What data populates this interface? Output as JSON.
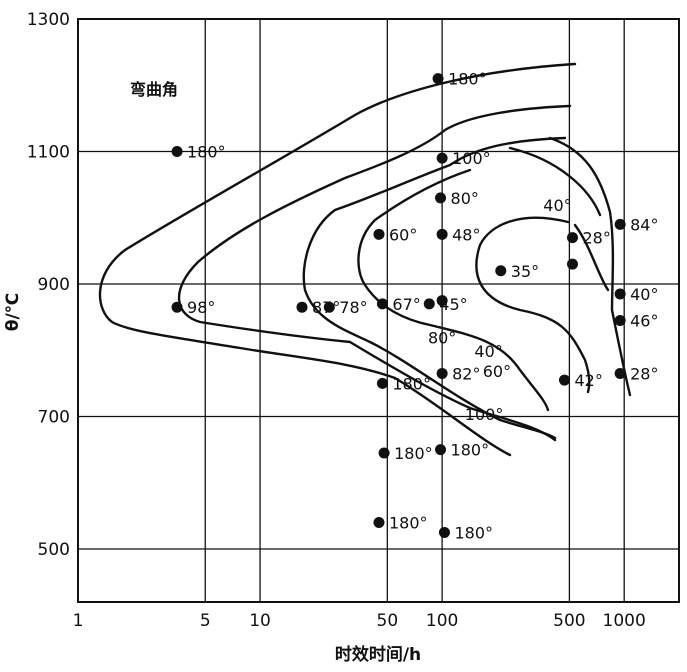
{
  "chart_data": {
    "type": "scatter",
    "xlabel": "时效时间/h",
    "ylabel": "θ/℃",
    "x_scale": "log",
    "xlim": [
      1,
      2000
    ],
    "ylim": [
      420,
      1300
    ],
    "x_ticks": [
      {
        "value": 1,
        "label": "1"
      },
      {
        "value": 5,
        "label": "5"
      },
      {
        "value": 10,
        "label": "10"
      },
      {
        "value": 50,
        "label": "50"
      },
      {
        "value": 100,
        "label": "100"
      },
      {
        "value": 500,
        "label": "500"
      },
      {
        "value": 1000,
        "label": "1000"
      }
    ],
    "y_ticks": [
      {
        "value": 500,
        "label": "500"
      },
      {
        "value": 700,
        "label": "700"
      },
      {
        "value": 900,
        "label": "900"
      },
      {
        "value": 1100,
        "label": "1100"
      },
      {
        "value": 1300,
        "label": "1300"
      }
    ],
    "grid": true,
    "legend_title": "弯曲角",
    "series": [
      {
        "name": "弯曲角",
        "points": [
          {
            "x": 3.5,
            "y": 1100,
            "label": "180°"
          },
          {
            "x": 3.5,
            "y": 865,
            "label": "98°"
          },
          {
            "x": 17,
            "y": 865,
            "label": "87°"
          },
          {
            "x": 24,
            "y": 865,
            "label": "78°"
          },
          {
            "x": 45,
            "y": 975,
            "label": "60°"
          },
          {
            "x": 47,
            "y": 870,
            "label": "67°"
          },
          {
            "x": 47,
            "y": 750,
            "label": "180°"
          },
          {
            "x": 48,
            "y": 645,
            "label": "180°"
          },
          {
            "x": 45,
            "y": 540,
            "label": "180°"
          },
          {
            "x": 95,
            "y": 1210,
            "label": "180°"
          },
          {
            "x": 100,
            "y": 1090,
            "label": "100°"
          },
          {
            "x": 98,
            "y": 1030,
            "label": "80°"
          },
          {
            "x": 100,
            "y": 975,
            "label": "48°"
          },
          {
            "x": 85,
            "y": 870,
            "label": "45°"
          },
          {
            "x": 100,
            "y": 875,
            "label": ""
          },
          {
            "x": 100,
            "y": 765,
            "label": "82°"
          },
          {
            "x": 98,
            "y": 650,
            "label": "180°"
          },
          {
            "x": 103,
            "y": 525,
            "label": "180°"
          },
          {
            "x": 210,
            "y": 920,
            "label": "35°"
          },
          {
            "x": 520,
            "y": 970,
            "label": "28°"
          },
          {
            "x": 520,
            "y": 930,
            "label": ""
          },
          {
            "x": 470,
            "y": 755,
            "label": "42°"
          },
          {
            "x": 950,
            "y": 990,
            "label": "84°"
          },
          {
            "x": 950,
            "y": 885,
            "label": "40°"
          },
          {
            "x": 950,
            "y": 845,
            "label": "46°"
          },
          {
            "x": 950,
            "y": 765,
            "label": "28°"
          }
        ]
      }
    ],
    "contour_labels": [
      {
        "x": 430,
        "y": 1010,
        "label": "40°"
      },
      {
        "x": 100,
        "y": 810,
        "label": "80°"
      },
      {
        "x": 180,
        "y": 790,
        "label": "40°"
      },
      {
        "x": 200,
        "y": 760,
        "label": "60°"
      },
      {
        "x": 170,
        "y": 695,
        "label": "100°"
      }
    ]
  }
}
